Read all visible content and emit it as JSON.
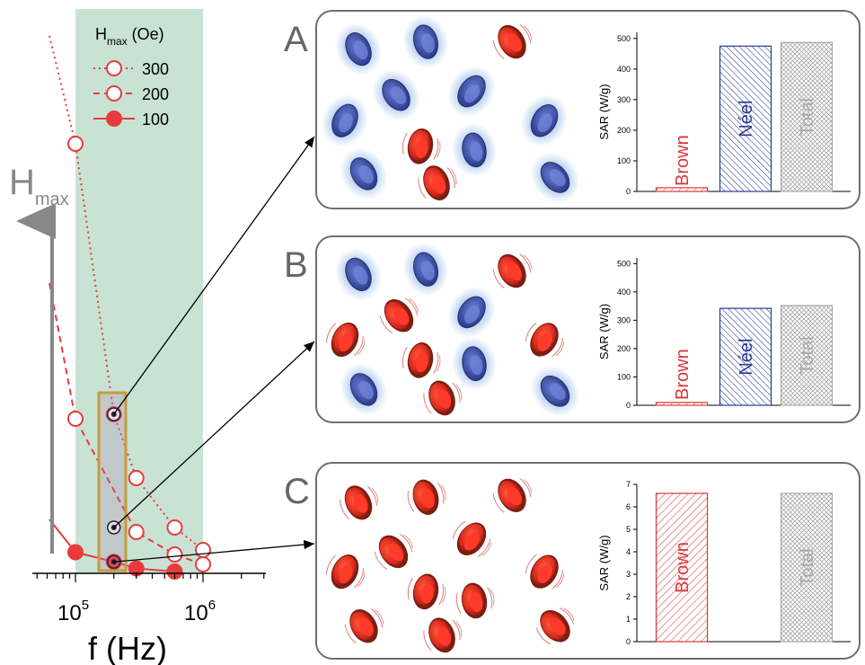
{
  "colors": {
    "band": "#c8e3d4",
    "red": "#e83b3b",
    "dark_red": "#8b1a1a",
    "brown_text": "#d7373b",
    "neel_text": "#2b3b8f",
    "total_text": "#a8a8a8",
    "arrow_gray": "#888888",
    "panel_border": "#6e6e6e",
    "highlight_box": "#c79a3a",
    "rbc_blue": "#4a5db8",
    "rbc_glow": "#a9c8ee",
    "rbc_red": "#e5322a",
    "rbc_rim": "#7a1f12"
  },
  "icons": {
    "blue_particle": "blue-blurred-disc-icon",
    "red_particle": "red-rotating-disc-icon"
  },
  "left_plot": {
    "y_axis_label": "H",
    "y_axis_label_sub": "max",
    "x_axis_label": "f (Hz)",
    "x_tick_labels": [
      {
        "base": "10",
        "exp": "5"
      },
      {
        "base": "10",
        "exp": "6"
      }
    ],
    "legend_title": "H",
    "legend_title_sub": "max",
    "legend_title_unit": " (Oe)",
    "legend_entries": [
      "300",
      "200",
      "100"
    ]
  },
  "chart_data": [
    {
      "type": "scatter",
      "title": "",
      "xlabel": "f (Hz)",
      "ylabel": "Hmax",
      "x_scale": "log",
      "legend_title": "Hmax (Oe)",
      "legend_placement": "top-right",
      "grid": false,
      "series": [
        {
          "name": "300",
          "style": "dotted, open circles",
          "x": [
            100000,
            200000,
            300000,
            600000,
            1000000
          ],
          "y": [
            455,
            160,
            80,
            35,
            18
          ]
        },
        {
          "name": "200",
          "style": "dashed, open circles",
          "x": [
            100000,
            300000,
            600000,
            1000000
          ],
          "y": [
            155,
            30,
            12,
            4
          ]
        },
        {
          "name": "100",
          "style": "solid, filled circles",
          "x": [
            100000,
            200000,
            300000,
            600000
          ],
          "y": [
            15,
            6,
            2,
            0.5
          ]
        }
      ],
      "highlighted_frequency": 200000
    },
    {
      "panel": "A",
      "type": "bar",
      "ylabel": "SAR (W/g)",
      "ylim": [
        0,
        520
      ],
      "y_ticks": [
        0,
        100,
        200,
        300,
        400,
        500
      ],
      "categories": [
        "Brown",
        "Néel",
        "Total"
      ],
      "values": [
        12,
        475,
        487
      ]
    },
    {
      "panel": "B",
      "type": "bar",
      "ylabel": "SAR (W/g)",
      "ylim": [
        0,
        520
      ],
      "y_ticks": [
        0,
        100,
        200,
        300,
        400,
        500
      ],
      "categories": [
        "Brown",
        "Néel",
        "Total"
      ],
      "values": [
        10,
        342,
        352
      ]
    },
    {
      "panel": "C",
      "type": "bar",
      "ylabel": "SAR (W/g)",
      "ylim": [
        0,
        7
      ],
      "y_ticks": [
        0,
        1,
        2,
        3,
        4,
        5,
        6,
        7
      ],
      "categories": [
        "Brown",
        "",
        "Total"
      ],
      "values": [
        6.6,
        0,
        6.6
      ]
    }
  ],
  "panels": [
    {
      "letter": "A",
      "particles": [
        {
          "u": 0.13,
          "v": 0.17,
          "kind": "blue",
          "rot": -25
        },
        {
          "u": 0.38,
          "v": 0.13,
          "kind": "blue",
          "rot": -15
        },
        {
          "u": 0.7,
          "v": 0.13,
          "kind": "red",
          "rot": -30
        },
        {
          "u": 0.27,
          "v": 0.42,
          "kind": "blue",
          "rot": -35
        },
        {
          "u": 0.55,
          "v": 0.4,
          "kind": "blue",
          "rot": 35
        },
        {
          "u": 0.08,
          "v": 0.56,
          "kind": "blue",
          "rot": 25
        },
        {
          "u": 0.82,
          "v": 0.56,
          "kind": "blue",
          "rot": 30
        },
        {
          "u": 0.36,
          "v": 0.7,
          "kind": "red",
          "rot": 10
        },
        {
          "u": 0.56,
          "v": 0.72,
          "kind": "blue",
          "rot": -10
        },
        {
          "u": 0.15,
          "v": 0.85,
          "kind": "blue",
          "rot": -30
        },
        {
          "u": 0.86,
          "v": 0.87,
          "kind": "blue",
          "rot": -40
        },
        {
          "u": 0.42,
          "v": 0.9,
          "kind": "red",
          "rot": -20
        }
      ]
    },
    {
      "letter": "B",
      "particles": [
        {
          "u": 0.13,
          "v": 0.18,
          "kind": "blue",
          "rot": -25
        },
        {
          "u": 0.38,
          "v": 0.15,
          "kind": "blue",
          "rot": -15
        },
        {
          "u": 0.7,
          "v": 0.16,
          "kind": "red",
          "rot": -30
        },
        {
          "u": 0.28,
          "v": 0.42,
          "kind": "red",
          "rot": -35
        },
        {
          "u": 0.55,
          "v": 0.4,
          "kind": "blue",
          "rot": 35
        },
        {
          "u": 0.08,
          "v": 0.56,
          "kind": "red",
          "rot": 25
        },
        {
          "u": 0.82,
          "v": 0.56,
          "kind": "red",
          "rot": 30
        },
        {
          "u": 0.36,
          "v": 0.68,
          "kind": "red",
          "rot": 10
        },
        {
          "u": 0.56,
          "v": 0.7,
          "kind": "blue",
          "rot": -10
        },
        {
          "u": 0.15,
          "v": 0.85,
          "kind": "blue",
          "rot": -30
        },
        {
          "u": 0.86,
          "v": 0.86,
          "kind": "blue",
          "rot": -40
        },
        {
          "u": 0.44,
          "v": 0.9,
          "kind": "red",
          "rot": -20
        }
      ]
    },
    {
      "letter": "C",
      "particles": [
        {
          "u": 0.13,
          "v": 0.18,
          "kind": "red",
          "rot": -25
        },
        {
          "u": 0.38,
          "v": 0.15,
          "kind": "red",
          "rot": -15
        },
        {
          "u": 0.7,
          "v": 0.14,
          "kind": "red",
          "rot": -30
        },
        {
          "u": 0.26,
          "v": 0.45,
          "kind": "red",
          "rot": -35
        },
        {
          "u": 0.55,
          "v": 0.38,
          "kind": "red",
          "rot": 35
        },
        {
          "u": 0.08,
          "v": 0.56,
          "kind": "red",
          "rot": 25
        },
        {
          "u": 0.82,
          "v": 0.56,
          "kind": "red",
          "rot": 30
        },
        {
          "u": 0.38,
          "v": 0.67,
          "kind": "red",
          "rot": 10
        },
        {
          "u": 0.56,
          "v": 0.72,
          "kind": "red",
          "rot": -10
        },
        {
          "u": 0.15,
          "v": 0.86,
          "kind": "red",
          "rot": -30
        },
        {
          "u": 0.86,
          "v": 0.86,
          "kind": "red",
          "rot": -40
        },
        {
          "u": 0.44,
          "v": 0.91,
          "kind": "red",
          "rot": -20
        }
      ]
    }
  ]
}
